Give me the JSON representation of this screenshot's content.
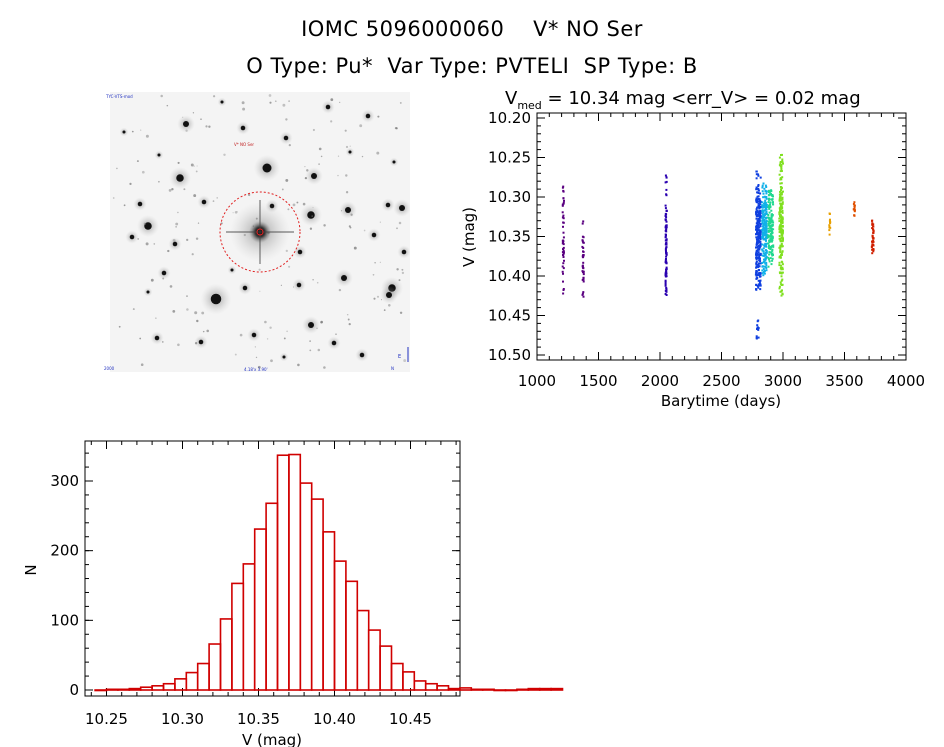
{
  "header": {
    "title_line1": "IOMC 5096000060    V* NO Ser",
    "title_line2": "O Type: Pu*  Var Type: PVTELI  SP Type: B"
  },
  "finder": {
    "label_top_left": "TYC-VTS-mod",
    "label_center": "V* NO Ser",
    "label_bottom": "4.18'x 3.90'",
    "label_bottom_left": "2000",
    "label_bottom_right": "N",
    "label_east": "E"
  },
  "chart_data": [
    {
      "type": "scatter",
      "title": "V_med = 10.34 mag <err_V> = 0.02 mag",
      "title_parts": {
        "main": "V",
        "sub": "med",
        "rest": " = 10.34 mag <err_V> = 0.02 mag"
      },
      "xlabel": "Barytime (days)",
      "ylabel": "V (mag)",
      "xlim": [
        1000,
        4000
      ],
      "ylim": [
        10.5,
        10.2
      ],
      "xticks": [
        "1000",
        "1500",
        "2000",
        "2500",
        "3000",
        "3500",
        "4000"
      ],
      "yticks": [
        "10.20",
        "10.25",
        "10.30",
        "10.35",
        "10.40",
        "10.45",
        "10.50"
      ],
      "clusters": [
        {
          "x": 1215,
          "width": 12,
          "ymin": 10.285,
          "ymax": 10.435,
          "color": "#5a0080",
          "n": 45
        },
        {
          "x": 1375,
          "width": 12,
          "ymin": 10.33,
          "ymax": 10.43,
          "color": "#5a0080",
          "n": 40
        },
        {
          "x": 2050,
          "width": 10,
          "ymin": 10.27,
          "ymax": 10.435,
          "color": "#2a00b0",
          "n": 90
        },
        {
          "x": 2800,
          "width": 40,
          "ymin": 10.265,
          "ymax": 10.42,
          "color": "#1040e0",
          "n": 260
        },
        {
          "x": 2795,
          "width": 20,
          "ymin": 10.455,
          "ymax": 10.48,
          "color": "#1040e0",
          "n": 14
        },
        {
          "x": 2850,
          "width": 40,
          "ymin": 10.28,
          "ymax": 10.4,
          "color": "#10b0e8",
          "n": 200
        },
        {
          "x": 2900,
          "width": 40,
          "ymin": 10.29,
          "ymax": 10.39,
          "color": "#20d890",
          "n": 140
        },
        {
          "x": 2985,
          "width": 30,
          "ymin": 10.245,
          "ymax": 10.43,
          "color": "#80e020",
          "n": 200
        },
        {
          "x": 3380,
          "width": 8,
          "ymin": 10.315,
          "ymax": 10.35,
          "color": "#e8a000",
          "n": 14
        },
        {
          "x": 3580,
          "width": 10,
          "ymin": 10.305,
          "ymax": 10.325,
          "color": "#e05000",
          "n": 14
        },
        {
          "x": 3730,
          "width": 14,
          "ymin": 10.32,
          "ymax": 10.38,
          "color": "#d02000",
          "n": 40
        }
      ]
    },
    {
      "type": "bar",
      "title": "",
      "xlabel": "V (mag)",
      "ylabel": "N",
      "xlim": [
        10.24,
        10.49
      ],
      "ylim": [
        -10,
        350
      ],
      "xticks": [
        "10.25",
        "10.30",
        "10.35",
        "10.40",
        "10.45"
      ],
      "yticks": [
        "0",
        "100",
        "200",
        "300"
      ],
      "bin_width": 0.0075,
      "bin_start": 10.2425,
      "color": "#d00000",
      "values": [
        0,
        1,
        1,
        2,
        4,
        6,
        9,
        16,
        25,
        38,
        66,
        102,
        153,
        181,
        231,
        268,
        337,
        338,
        297,
        274,
        227,
        185,
        156,
        114,
        86,
        63,
        38,
        26,
        13,
        9,
        6,
        2,
        3,
        1,
        1,
        0,
        0,
        1,
        2,
        2,
        2
      ]
    }
  ]
}
